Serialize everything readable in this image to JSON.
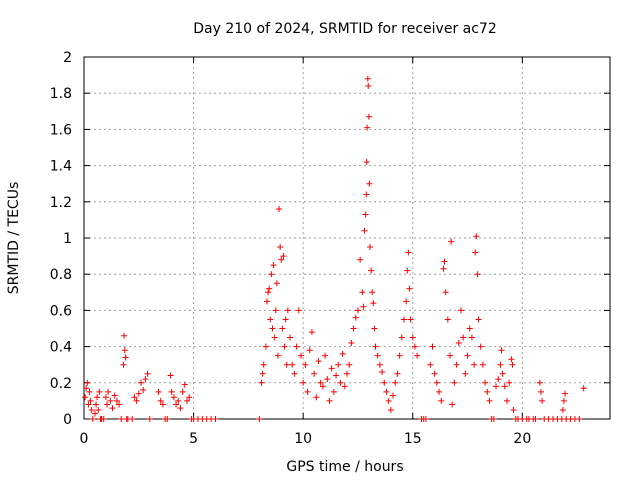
{
  "chart_data": {
    "type": "scatter",
    "title": "Day 210 of 2024, SRMTID for receiver ac72",
    "xlabel": "GPS time / hours",
    "ylabel": "SRMTID / TECUs",
    "xlim": [
      0,
      24
    ],
    "ylim": [
      0,
      2
    ],
    "xticks": [
      0,
      5,
      10,
      15,
      20
    ],
    "yticks": [
      0,
      0.2,
      0.4,
      0.6,
      0.8,
      1,
      1.2,
      1.4,
      1.6,
      1.8,
      2
    ],
    "xtick_labels": [
      "0",
      "5",
      "10",
      "15",
      "20"
    ],
    "ytick_labels": [
      "0",
      "0.2",
      "0.4",
      "0.6",
      "0.8",
      "1",
      "1.2",
      "1.4",
      "1.6",
      "1.8",
      "2"
    ],
    "grid": true,
    "marker": "+",
    "color": "#ff0000",
    "series": [
      {
        "name": "SRMTID",
        "points": [
          [
            0.05,
            0.12
          ],
          [
            0.1,
            0.17
          ],
          [
            0.15,
            0.2
          ],
          [
            0.2,
            0.08
          ],
          [
            0.25,
            0.15
          ],
          [
            0.3,
            0.1
          ],
          [
            0.35,
            0.05
          ],
          [
            0.4,
            0.0
          ],
          [
            0.5,
            0.03
          ],
          [
            0.55,
            0.08
          ],
          [
            0.6,
            0.12
          ],
          [
            0.65,
            0.05
          ],
          [
            0.7,
            0.15
          ],
          [
            0.75,
            0.0
          ],
          [
            0.8,
            0.0
          ],
          [
            0.9,
            0.0
          ],
          [
            1.0,
            0.12
          ],
          [
            1.05,
            0.08
          ],
          [
            1.1,
            0.15
          ],
          [
            1.2,
            0.1
          ],
          [
            1.3,
            0.06
          ],
          [
            1.4,
            0.13
          ],
          [
            1.5,
            0.1
          ],
          [
            1.6,
            0.08
          ],
          [
            1.7,
            0.0
          ],
          [
            1.8,
            0.3
          ],
          [
            1.83,
            0.46
          ],
          [
            1.86,
            0.38
          ],
          [
            1.9,
            0.34
          ],
          [
            1.95,
            0.0
          ],
          [
            2.0,
            0.0
          ],
          [
            2.2,
            0.0
          ],
          [
            2.3,
            0.12
          ],
          [
            2.4,
            0.1
          ],
          [
            2.5,
            0.14
          ],
          [
            2.6,
            0.2
          ],
          [
            2.7,
            0.16
          ],
          [
            2.8,
            0.22
          ],
          [
            2.9,
            0.25
          ],
          [
            3.0,
            0.0
          ],
          [
            3.4,
            0.15
          ],
          [
            3.5,
            0.1
          ],
          [
            3.6,
            0.08
          ],
          [
            3.7,
            0.0
          ],
          [
            3.8,
            0.0
          ],
          [
            3.95,
            0.24
          ],
          [
            4.0,
            0.15
          ],
          [
            4.1,
            0.12
          ],
          [
            4.2,
            0.08
          ],
          [
            4.3,
            0.1
          ],
          [
            4.4,
            0.06
          ],
          [
            4.5,
            0.15
          ],
          [
            4.6,
            0.19
          ],
          [
            4.7,
            0.1
          ],
          [
            4.8,
            0.12
          ],
          [
            4.9,
            0.0
          ],
          [
            5.0,
            0.0
          ],
          [
            5.2,
            0.0
          ],
          [
            5.4,
            0.0
          ],
          [
            5.6,
            0.0
          ],
          [
            5.8,
            0.0
          ],
          [
            6.0,
            0.0
          ],
          [
            8.0,
            0.0
          ],
          [
            8.1,
            0.2
          ],
          [
            8.15,
            0.25
          ],
          [
            8.2,
            0.3
          ],
          [
            8.3,
            0.4
          ],
          [
            8.35,
            0.65
          ],
          [
            8.4,
            0.7
          ],
          [
            8.45,
            0.72
          ],
          [
            8.5,
            0.55
          ],
          [
            8.55,
            0.8
          ],
          [
            8.6,
            0.5
          ],
          [
            8.65,
            0.85
          ],
          [
            8.7,
            0.45
          ],
          [
            8.75,
            0.6
          ],
          [
            8.8,
            0.75
          ],
          [
            8.85,
            0.35
          ],
          [
            8.9,
            1.16
          ],
          [
            8.95,
            0.95
          ],
          [
            9.0,
            0.88
          ],
          [
            9.05,
            0.5
          ],
          [
            9.1,
            0.9
          ],
          [
            9.15,
            0.4
          ],
          [
            9.2,
            0.55
          ],
          [
            9.25,
            0.3
          ],
          [
            9.3,
            0.6
          ],
          [
            9.4,
            0.45
          ],
          [
            9.5,
            0.3
          ],
          [
            9.6,
            0.25
          ],
          [
            9.7,
            0.4
          ],
          [
            9.8,
            0.6
          ],
          [
            9.9,
            0.35
          ],
          [
            10.0,
            0.2
          ],
          [
            10.1,
            0.3
          ],
          [
            10.2,
            0.15
          ],
          [
            10.3,
            0.38
          ],
          [
            10.4,
            0.48
          ],
          [
            10.5,
            0.25
          ],
          [
            10.6,
            0.12
          ],
          [
            10.7,
            0.32
          ],
          [
            10.8,
            0.2
          ],
          [
            10.9,
            0.18
          ],
          [
            11.0,
            0.35
          ],
          [
            11.1,
            0.22
          ],
          [
            11.2,
            0.1
          ],
          [
            11.3,
            0.28
          ],
          [
            11.4,
            0.15
          ],
          [
            11.5,
            0.24
          ],
          [
            11.6,
            0.3
          ],
          [
            11.7,
            0.2
          ],
          [
            11.8,
            0.36
          ],
          [
            11.9,
            0.18
          ],
          [
            12.0,
            0.25
          ],
          [
            12.1,
            0.3
          ],
          [
            12.2,
            0.42
          ],
          [
            12.3,
            0.5
          ],
          [
            12.4,
            0.56
          ],
          [
            12.5,
            0.6
          ],
          [
            12.6,
            0.88
          ],
          [
            12.7,
            0.7
          ],
          [
            12.75,
            0.62
          ],
          [
            12.8,
            1.04
          ],
          [
            12.85,
            1.13
          ],
          [
            12.88,
            1.24
          ],
          [
            12.9,
            1.42
          ],
          [
            12.92,
            1.61
          ],
          [
            12.95,
            1.88
          ],
          [
            12.97,
            1.84
          ],
          [
            13.0,
            1.67
          ],
          [
            13.02,
            1.3
          ],
          [
            13.05,
            0.95
          ],
          [
            13.1,
            0.82
          ],
          [
            13.15,
            0.7
          ],
          [
            13.2,
            0.64
          ],
          [
            13.25,
            0.5
          ],
          [
            13.3,
            0.4
          ],
          [
            13.4,
            0.35
          ],
          [
            13.5,
            0.3
          ],
          [
            13.6,
            0.26
          ],
          [
            13.7,
            0.2
          ],
          [
            13.8,
            0.15
          ],
          [
            13.9,
            0.1
          ],
          [
            14.0,
            0.05
          ],
          [
            14.1,
            0.13
          ],
          [
            14.2,
            0.2
          ],
          [
            14.3,
            0.25
          ],
          [
            14.4,
            0.35
          ],
          [
            14.5,
            0.45
          ],
          [
            14.6,
            0.55
          ],
          [
            14.7,
            0.65
          ],
          [
            14.75,
            0.82
          ],
          [
            14.8,
            0.92
          ],
          [
            14.85,
            0.72
          ],
          [
            14.9,
            0.55
          ],
          [
            15.0,
            0.45
          ],
          [
            15.1,
            0.4
          ],
          [
            15.2,
            0.35
          ],
          [
            15.4,
            0.0
          ],
          [
            15.5,
            0.0
          ],
          [
            15.6,
            0.0
          ],
          [
            15.8,
            0.3
          ],
          [
            15.9,
            0.4
          ],
          [
            16.0,
            0.25
          ],
          [
            16.1,
            0.2
          ],
          [
            16.2,
            0.15
          ],
          [
            16.3,
            0.1
          ],
          [
            16.4,
            0.83
          ],
          [
            16.45,
            0.87
          ],
          [
            16.5,
            0.7
          ],
          [
            16.6,
            0.55
          ],
          [
            16.7,
            0.35
          ],
          [
            16.75,
            0.98
          ],
          [
            16.8,
            0.08
          ],
          [
            16.9,
            0.2
          ],
          [
            17.0,
            0.3
          ],
          [
            17.1,
            0.42
          ],
          [
            17.2,
            0.6
          ],
          [
            17.3,
            0.45
          ],
          [
            17.4,
            0.25
          ],
          [
            17.5,
            0.35
          ],
          [
            17.6,
            0.5
          ],
          [
            17.7,
            0.45
          ],
          [
            17.8,
            0.3
          ],
          [
            17.85,
            0.92
          ],
          [
            17.9,
            1.01
          ],
          [
            17.95,
            0.8
          ],
          [
            18.0,
            0.55
          ],
          [
            18.1,
            0.4
          ],
          [
            18.2,
            0.3
          ],
          [
            18.3,
            0.2
          ],
          [
            18.4,
            0.15
          ],
          [
            18.5,
            0.1
          ],
          [
            18.6,
            0.0
          ],
          [
            18.7,
            0.0
          ],
          [
            18.8,
            0.18
          ],
          [
            18.9,
            0.22
          ],
          [
            19.0,
            0.3
          ],
          [
            19.05,
            0.38
          ],
          [
            19.1,
            0.25
          ],
          [
            19.2,
            0.18
          ],
          [
            19.3,
            0.1
          ],
          [
            19.4,
            0.2
          ],
          [
            19.5,
            0.33
          ],
          [
            19.55,
            0.3
          ],
          [
            19.6,
            0.05
          ],
          [
            19.7,
            0.0
          ],
          [
            19.8,
            0.0
          ],
          [
            20.0,
            0.0
          ],
          [
            20.2,
            0.0
          ],
          [
            20.3,
            0.0
          ],
          [
            20.5,
            0.0
          ],
          [
            20.6,
            0.0
          ],
          [
            20.8,
            0.2
          ],
          [
            20.85,
            0.15
          ],
          [
            20.9,
            0.1
          ],
          [
            21.0,
            0.0
          ],
          [
            21.2,
            0.0
          ],
          [
            21.4,
            0.0
          ],
          [
            21.6,
            0.0
          ],
          [
            21.8,
            0.0
          ],
          [
            21.85,
            0.05
          ],
          [
            21.9,
            0.1
          ],
          [
            21.95,
            0.14
          ],
          [
            22.0,
            0.0
          ],
          [
            22.2,
            0.0
          ],
          [
            22.4,
            0.0
          ],
          [
            22.6,
            0.0
          ],
          [
            22.8,
            0.17
          ]
        ]
      }
    ]
  }
}
